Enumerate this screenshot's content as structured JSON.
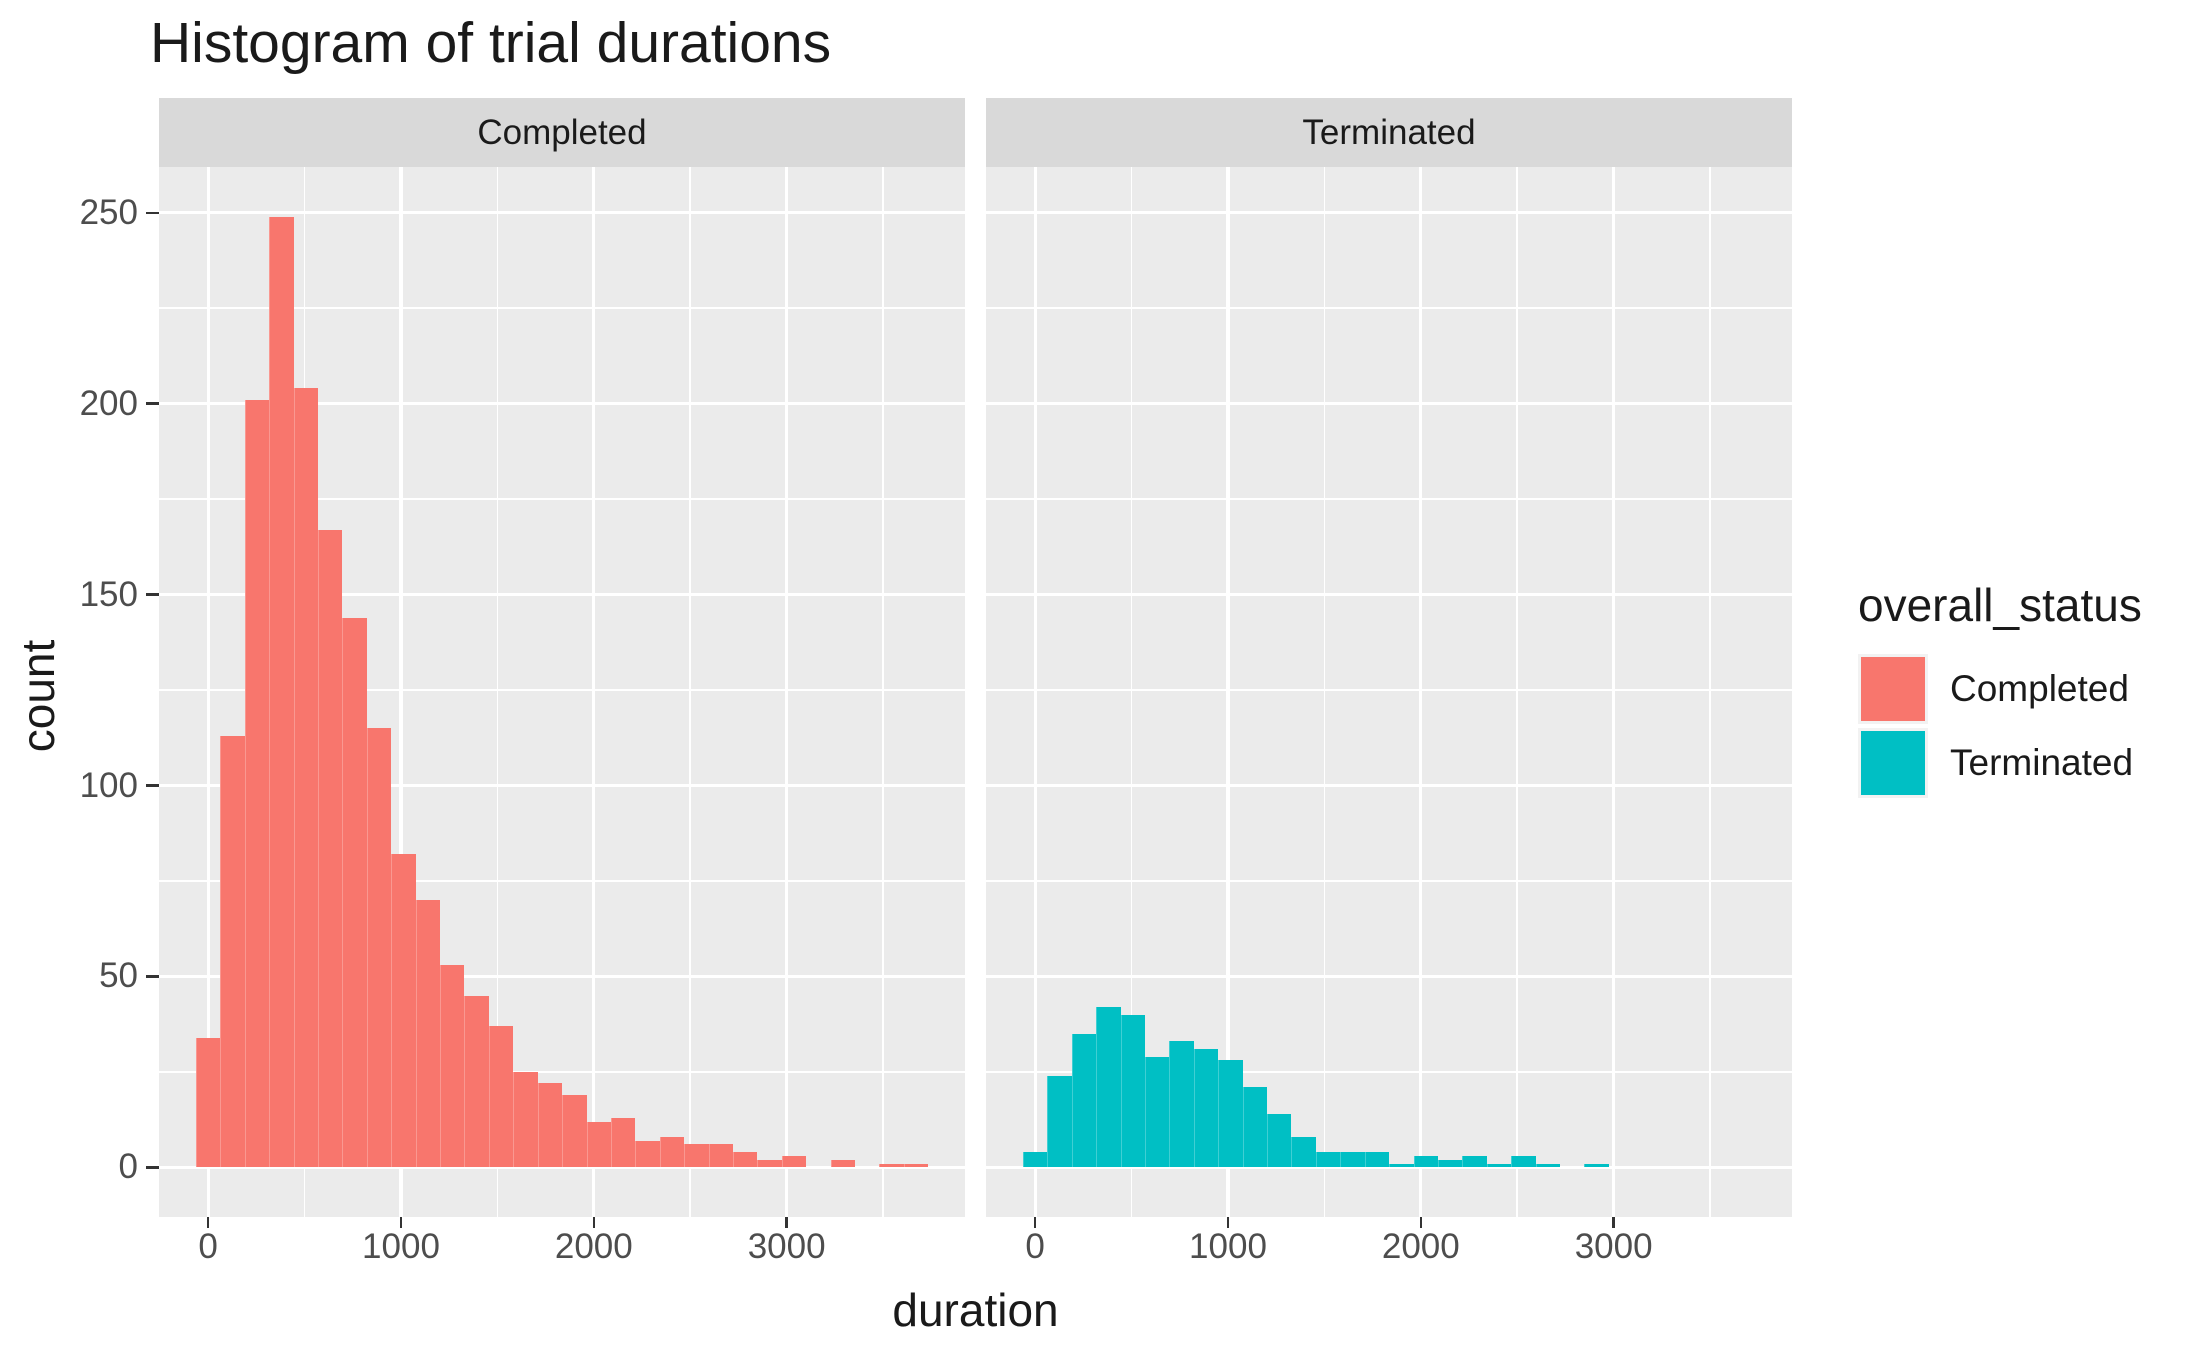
{
  "chart_data": {
    "type": "bar",
    "variant": "faceted-histogram",
    "title": "Histogram of trial durations",
    "xlabel": "duration",
    "ylabel": "count",
    "legend_title": "overall_status",
    "legend_position": "right",
    "facet_labels": [
      "Completed",
      "Terminated"
    ],
    "bin_width": 126.6,
    "bin_centers": [
      0,
      126.6,
      253.2,
      379.8,
      506.4,
      633.0,
      759.6,
      886.2,
      1012.8,
      1139.4,
      1266.0,
      1392.6,
      1519.2,
      1645.8,
      1772.4,
      1899.0,
      2025.6,
      2152.2,
      2278.8,
      2405.4,
      2532.0,
      2658.6,
      2785.2,
      2911.8,
      3038.4,
      3165.0,
      3291.6,
      3418.2,
      3544.8,
      3671.4
    ],
    "series": [
      {
        "name": "Completed",
        "color": "#F8766D",
        "values": [
          34,
          113,
          201,
          249,
          204,
          167,
          144,
          115,
          82,
          70,
          53,
          45,
          37,
          25,
          22,
          19,
          12,
          13,
          7,
          8,
          6,
          6,
          4,
          2,
          3,
          0,
          2,
          0,
          1,
          1
        ]
      },
      {
        "name": "Terminated",
        "color": "#00BFC4",
        "values": [
          4,
          24,
          35,
          42,
          40,
          29,
          33,
          31,
          28,
          21,
          14,
          8,
          4,
          4,
          4,
          1,
          3,
          2,
          3,
          1,
          3,
          1,
          0,
          1,
          0,
          0,
          0,
          0,
          0,
          0
        ]
      }
    ],
    "x_ticks": [
      0,
      1000,
      2000,
      3000
    ],
    "x_minor_ticks": [
      500,
      1500,
      2500,
      3500
    ],
    "y_ticks": [
      0,
      50,
      100,
      150,
      200,
      250
    ],
    "y_minor_ticks": [
      25,
      75,
      125,
      175,
      225
    ],
    "xlim": [
      -255,
      3925
    ],
    "ylim": [
      -13,
      262
    ],
    "grid": "on",
    "theme": {
      "panel_bg": "#EBEBEB",
      "strip_bg": "#D9D9D9",
      "grid_color": "#FFFFFF",
      "tick_label_color": "#4D4D4D",
      "text_color": "#1A1A1A",
      "tick_mark_color": "#333333"
    }
  }
}
